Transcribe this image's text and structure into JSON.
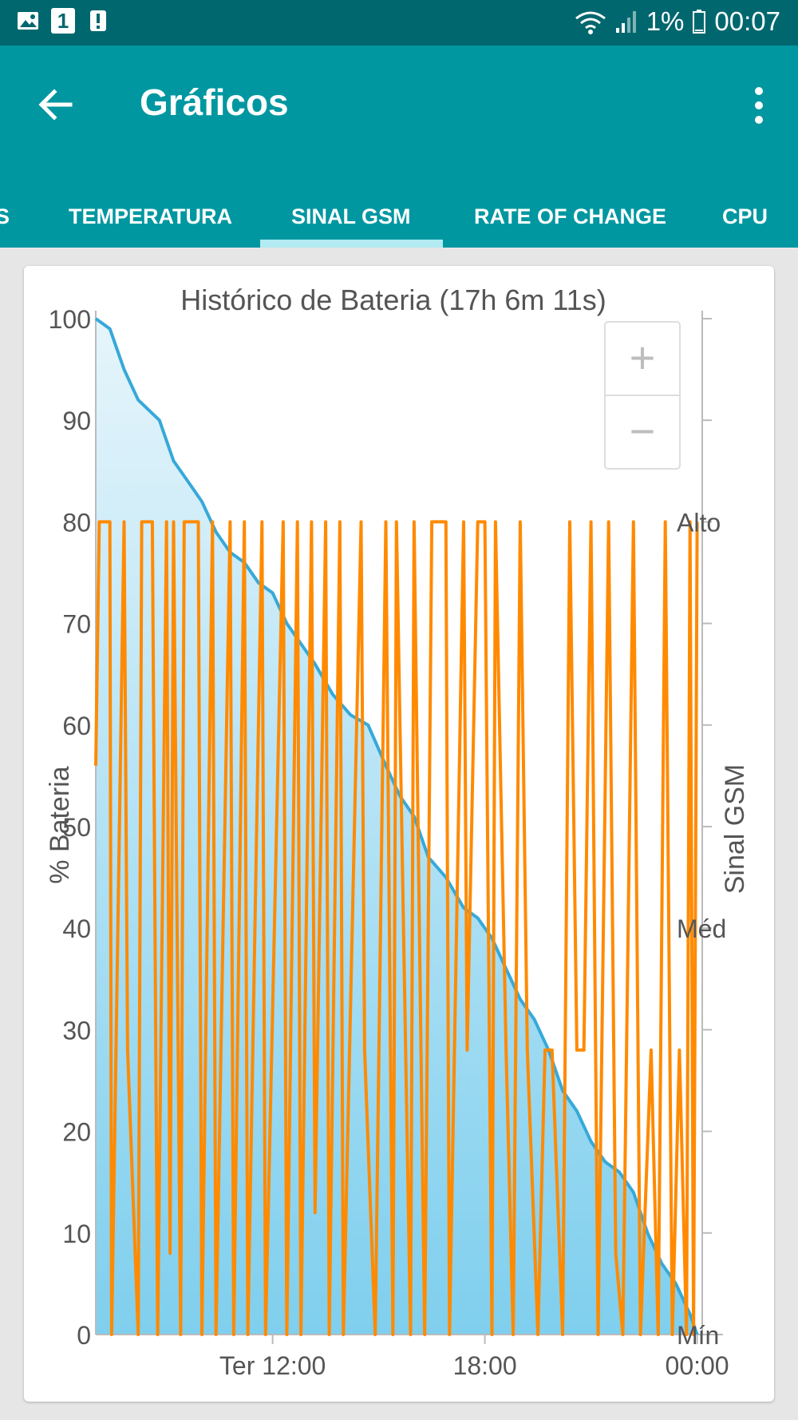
{
  "status_bar": {
    "notification_count": "1",
    "battery_percent": "1%",
    "time": "00:07",
    "icons": [
      "image-icon",
      "notification-badge-icon",
      "alert-icon",
      "wifi-icon",
      "signal-icon",
      "battery-icon"
    ]
  },
  "app_bar": {
    "title": "Gráficos",
    "back_icon": "arrow-back-icon",
    "menu_icon": "more-vert-icon"
  },
  "tabs": [
    {
      "label": "S"
    },
    {
      "label": "TEMPERATURA"
    },
    {
      "label": "SINAL GSM",
      "selected": true
    },
    {
      "label": "RATE OF CHANGE"
    },
    {
      "label": "CPU"
    }
  ],
  "zoom_controls": {
    "zoom_in": "+",
    "zoom_out": "−"
  },
  "colors": {
    "status_bar": "#00676e",
    "app_bar": "#0097a1",
    "tab_indicator": "#b2ebf2",
    "battery_line": "#36a9d9",
    "battery_fill": "#7fcfee",
    "signal_line": "#ff8a00"
  },
  "chart_data": {
    "type": "line",
    "title": "Histórico de Bateria (17h 6m 11s)",
    "ylabel": "% Bateria",
    "y2label": "Sinal GSM",
    "ylim": [
      0,
      100
    ],
    "y_ticks": [
      "0",
      "10",
      "20",
      "30",
      "40",
      "50",
      "60",
      "70",
      "80",
      "90",
      "100"
    ],
    "y2_ticks": [
      "Mín",
      "Méd",
      "Alto"
    ],
    "x_ticks": [
      "Ter 12:00",
      "18:00",
      "00:00"
    ],
    "xlim_hours": [
      7.0,
      24.1
    ],
    "x_tick_hours": [
      12,
      18,
      24
    ],
    "grid": false,
    "series": [
      {
        "name": "% Bateria",
        "type": "area",
        "x_hours": [
          7.0,
          7.4,
          7.8,
          8.2,
          8.8,
          9.2,
          9.6,
          10.0,
          10.4,
          10.8,
          11.2,
          11.6,
          12.0,
          12.4,
          12.8,
          13.2,
          13.7,
          14.2,
          14.7,
          15.2,
          15.6,
          16.0,
          16.4,
          16.9,
          17.4,
          17.8,
          18.2,
          18.6,
          19.0,
          19.4,
          19.8,
          20.2,
          20.6,
          21.0,
          21.4,
          21.8,
          22.2,
          22.6,
          23.0,
          23.4,
          23.8,
          24.0
        ],
        "values": [
          100,
          99,
          95,
          92,
          90,
          86,
          84,
          82,
          79,
          77,
          76,
          74,
          73,
          70,
          68,
          66,
          63,
          61,
          60,
          56,
          53,
          51,
          47,
          45,
          42,
          41,
          39,
          36,
          33,
          31,
          28,
          24,
          22,
          19,
          17,
          16,
          14,
          10,
          7,
          5,
          2,
          0
        ]
      },
      {
        "name": "Sinal GSM",
        "type": "line",
        "y_scale": "level",
        "x_hours": [
          7.0,
          7.1,
          7.4,
          7.45,
          7.8,
          7.9,
          8.2,
          8.3,
          8.6,
          8.75,
          9.0,
          9.1,
          9.2,
          9.4,
          9.5,
          9.9,
          10.0,
          10.3,
          10.4,
          10.8,
          10.9,
          11.2,
          11.3,
          11.7,
          11.8,
          12.3,
          12.4,
          12.7,
          12.8,
          13.1,
          13.2,
          13.5,
          13.6,
          13.9,
          14.0,
          14.5,
          14.6,
          14.9,
          15.2,
          15.4,
          15.5,
          15.9,
          16.0,
          16.3,
          16.5,
          16.9,
          17.0,
          17.4,
          17.5,
          17.8,
          18.0,
          18.2,
          18.3,
          18.6,
          18.8,
          19.0,
          19.2,
          19.5,
          19.7,
          19.9,
          20.2,
          20.4,
          20.6,
          20.8,
          21.0,
          21.2,
          21.5,
          21.7,
          21.9,
          22.2,
          22.4,
          22.7,
          22.9,
          23.1,
          23.3,
          23.5,
          23.7,
          23.8,
          23.9,
          24.0
        ],
        "values": [
          0.7,
          1.0,
          1.0,
          0.0,
          1.0,
          0.35,
          0.0,
          1.0,
          1.0,
          0.0,
          1.0,
          0.1,
          1.0,
          0.0,
          1.0,
          1.0,
          0.0,
          1.0,
          0.0,
          1.0,
          0.0,
          1.0,
          0.0,
          1.0,
          0.0,
          1.0,
          0.0,
          1.0,
          0.0,
          1.0,
          0.15,
          1.0,
          0.0,
          1.0,
          0.0,
          1.0,
          0.35,
          0.0,
          1.0,
          0.0,
          1.0,
          0.0,
          1.0,
          0.0,
          1.0,
          1.0,
          0.0,
          1.0,
          0.35,
          1.0,
          1.0,
          0.0,
          1.0,
          0.35,
          0.0,
          1.0,
          0.35,
          0.0,
          0.35,
          0.35,
          0.0,
          1.0,
          0.35,
          0.35,
          1.0,
          0.0,
          1.0,
          0.1,
          0.0,
          1.0,
          0.0,
          0.35,
          0.0,
          1.0,
          0.0,
          0.35,
          0.0,
          1.0,
          0.0,
          1.0
        ]
      }
    ]
  }
}
